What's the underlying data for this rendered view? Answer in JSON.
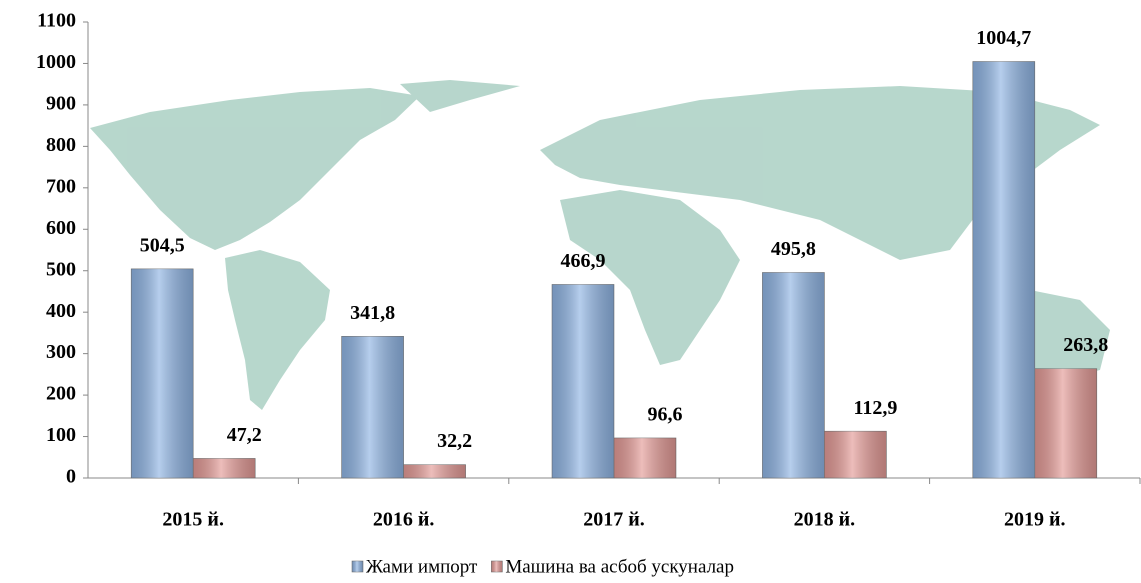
{
  "chart_data": {
    "type": "bar",
    "categories": [
      "2015 й.",
      "2016 й.",
      "2017 й.",
      "2018 й.",
      "2019 й."
    ],
    "series": [
      {
        "name": "Жами импорт",
        "color": "#8fb4e3",
        "values": [
          504.5,
          341.8,
          466.9,
          495.8,
          1004.7
        ],
        "value_labels": [
          "504,5",
          "341,8",
          "466,9",
          "495,8",
          "1004,7"
        ]
      },
      {
        "name": "Машина ва асбоб ускуналар",
        "color": "#e39a96",
        "values": [
          47.2,
          32.2,
          96.6,
          112.9,
          263.8
        ],
        "value_labels": [
          "47,2",
          "32,2",
          "96,6",
          "112,9",
          "263,8"
        ]
      }
    ],
    "ylim": [
      0,
      1100
    ],
    "yticks": [
      0,
      100,
      200,
      300,
      400,
      500,
      600,
      700,
      800,
      900,
      1000,
      1100
    ],
    "legend": "bottom"
  }
}
